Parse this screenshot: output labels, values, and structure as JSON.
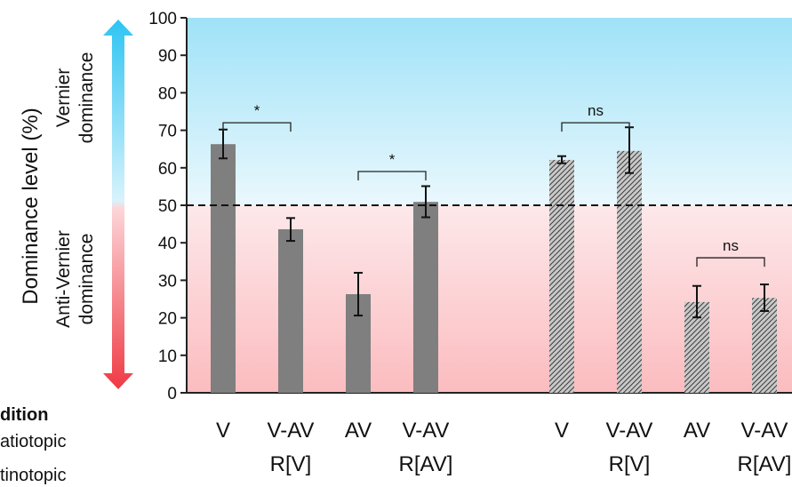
{
  "chart_data": {
    "type": "bar",
    "ylabel": "Dominance level (%)",
    "ylim": [
      0,
      100
    ],
    "yticks": [
      0,
      10,
      20,
      30,
      40,
      50,
      60,
      70,
      80,
      90,
      100
    ],
    "reference_line": 50,
    "regions": {
      "upper": {
        "line1": "Vernier",
        "line2": "dominance",
        "color": "#3fc8f4"
      },
      "lower": {
        "line1": "Anti-Vernier",
        "line2": "dominance",
        "color": "#f0464f"
      }
    },
    "legend": {
      "title": "dition",
      "items": [
        "atiotopic",
        "tinotopic"
      ]
    },
    "groups": [
      {
        "pattern": "solid",
        "color": "#7f7f7f",
        "bars": [
          {
            "line1": "V",
            "line2": "",
            "value": 66.3,
            "err_low": 62.5,
            "err_high": 70.2
          },
          {
            "line1": "V-AV",
            "line2": "R[V]",
            "value": 43.6,
            "err_low": 40.5,
            "err_high": 46.6
          },
          {
            "line1": "AV",
            "line2": "",
            "value": 26.3,
            "err_low": 20.6,
            "err_high": 32.0
          },
          {
            "line1": "V-AV",
            "line2": "R[AV]",
            "value": 50.9,
            "err_low": 46.8,
            "err_high": 55.1
          }
        ],
        "brackets": [
          {
            "from": 0,
            "to": 1,
            "label": "*",
            "height": 72
          },
          {
            "from": 2,
            "to": 3,
            "label": "*",
            "height": 59
          }
        ]
      },
      {
        "pattern": "hatched",
        "color": "#9a9a9a",
        "bars": [
          {
            "line1": "V",
            "line2": "",
            "value": 62.1,
            "err_low": 61.2,
            "err_high": 63.1
          },
          {
            "line1": "V-AV",
            "line2": "R[V]",
            "value": 64.5,
            "err_low": 58.6,
            "err_high": 70.8
          },
          {
            "line1": "AV",
            "line2": "",
            "value": 24.2,
            "err_low": 20.1,
            "err_high": 28.5
          },
          {
            "line1": "V-AV",
            "line2": "R[AV]",
            "value": 25.3,
            "err_low": 21.8,
            "err_high": 28.9
          }
        ],
        "brackets": [
          {
            "from": 0,
            "to": 1,
            "label": "ns",
            "height": 72
          },
          {
            "from": 2,
            "to": 3,
            "label": "ns",
            "height": 36
          }
        ]
      }
    ]
  }
}
